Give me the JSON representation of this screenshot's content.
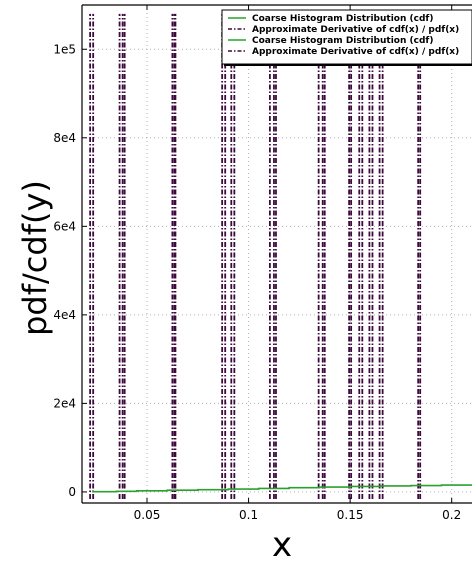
{
  "chart_data": {
    "type": "line",
    "title": "",
    "xlabel": "x",
    "ylabel": "pdf/cdf(y)",
    "xlim": [
      0.018,
      0.21
    ],
    "ylim": [
      -2500,
      110000
    ],
    "x_ticks": [
      0.05,
      0.1,
      0.15,
      0.2
    ],
    "x_tick_labels": [
      "0.05",
      "0.1",
      "0.15",
      "0.2"
    ],
    "y_ticks": [
      0,
      20000,
      40000,
      60000,
      80000,
      100000
    ],
    "y_tick_labels": [
      "0",
      "2e4",
      "4e4",
      "6e4",
      "8e4",
      "1e5"
    ],
    "grid": true,
    "legend_position": "top-right",
    "series": [
      {
        "name": "Coarse Histogram Distribution (cdf)",
        "color": "#2ca02c",
        "style": "solid",
        "x": [
          0.023,
          0.035,
          0.045,
          0.06,
          0.075,
          0.09,
          0.105,
          0.12,
          0.135,
          0.15,
          0.165,
          0.18,
          0.195,
          0.21
        ],
        "y": [
          50,
          150,
          250,
          400,
          500,
          650,
          800,
          950,
          1100,
          1250,
          1350,
          1450,
          1550,
          1650
        ]
      },
      {
        "name": "Approximate Derivative of cdf(x) / pdf(x)",
        "color": "#3d0a3d",
        "style": "dashdot",
        "spike_x": [
          0.022,
          0.0235,
          0.0365,
          0.038,
          0.039,
          0.0625,
          0.0635,
          0.064,
          0.087,
          0.0885,
          0.0915,
          0.093,
          0.1105,
          0.1125,
          0.1135,
          0.1345,
          0.1365,
          0.1375,
          0.1495,
          0.1505,
          0.1545,
          0.156,
          0.1595,
          0.161,
          0.1645,
          0.166,
          0.1835,
          0.1845
        ],
        "spike_height": 108000
      },
      {
        "name": "Coarse Histogram Distribution (cdf)",
        "color": "#2ca02c",
        "style": "solid"
      },
      {
        "name": "Approximate Derivative of cdf(x) / pdf(x)",
        "color": "#3d0a3d",
        "style": "dashdot"
      }
    ]
  }
}
